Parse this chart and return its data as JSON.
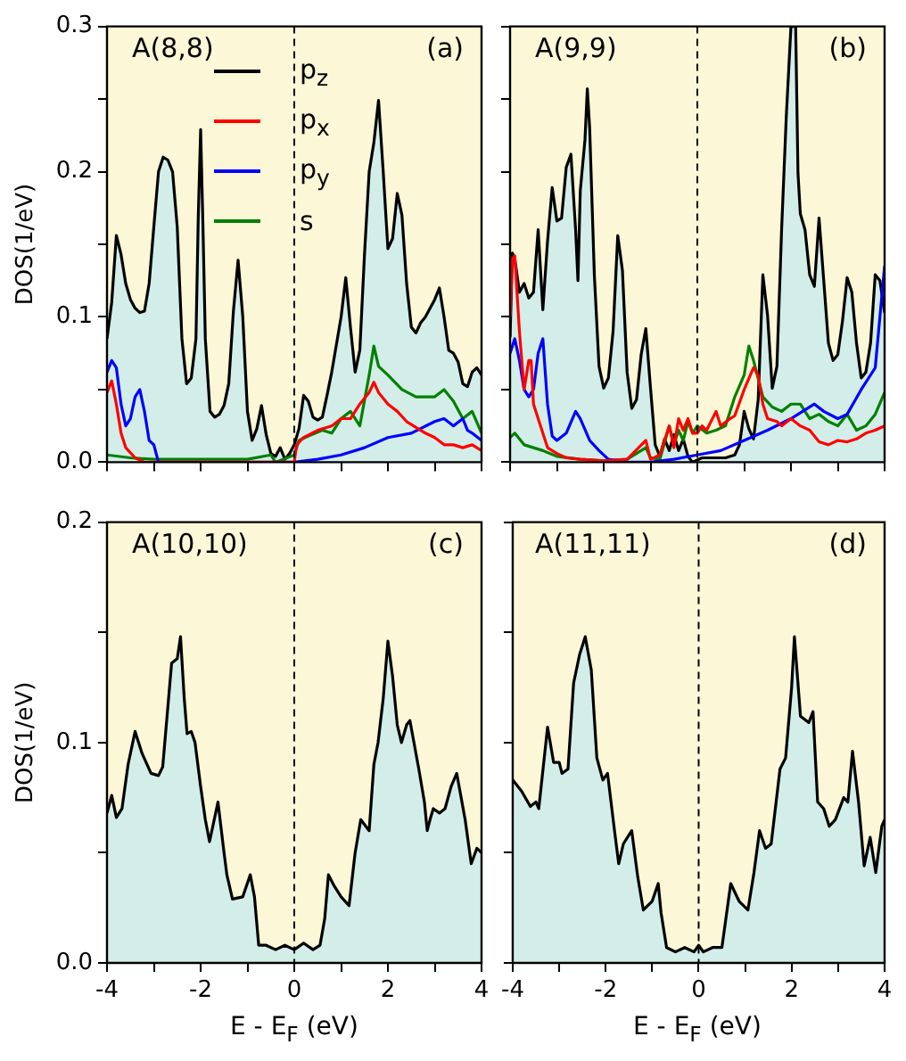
{
  "chart_data": [
    {
      "type": "line",
      "ylabel": "DOS(1/eV)",
      "xlim": [
        -4,
        4
      ],
      "xticks": [
        -4,
        {
          "value": -3,
          "label": null
        },
        -2,
        {
          "value": -1,
          "label": null
        },
        0,
        {
          "value": 1,
          "label": null
        },
        2,
        {
          "value": 3,
          "label": null
        },
        4
      ],
      "ylim": [
        0,
        0.3
      ],
      "yticks": [
        {
          "value": 0,
          "label": "0.0"
        },
        {
          "value": 0.05,
          "label": null
        },
        {
          "value": 0.1,
          "label": "0.1"
        },
        {
          "value": 0.15,
          "label": null
        },
        {
          "value": 0.2,
          "label": "0.2"
        },
        {
          "value": 0.25,
          "label": null
        },
        {
          "value": 0.3,
          "label": "0.3"
        }
      ],
      "tick_labels": "y",
      "legend": "top",
      "annotations": [
        "A(8,8)",
        "(a)"
      ],
      "ref_lines": [
        {
          "axis": "x",
          "value": 0,
          "line_style": "dashed"
        }
      ],
      "series": [
        {
          "name": "p$_{z}$",
          "type": "area",
          "color": "#000000",
          "x": [
            -4,
            -3.9,
            -3.8,
            -3.7,
            -3.6,
            -3.5,
            -3.4,
            -3.3,
            -3.2,
            -3.1,
            -3.0,
            -2.9,
            -2.8,
            -2.7,
            -2.6,
            -2.5,
            -2.4,
            -2.3,
            -2.2,
            -2.1,
            -2.05,
            -2.0,
            -1.95,
            -1.9,
            -1.8,
            -1.7,
            -1.6,
            -1.5,
            -1.4,
            -1.3,
            -1.2,
            -1.1,
            -1.0,
            -0.9,
            -0.8,
            -0.7,
            -0.6,
            -0.5,
            -0.4,
            -0.3,
            -0.2,
            -0.1,
            0,
            0.1,
            0.2,
            0.3,
            0.4,
            0.5,
            0.6,
            0.7,
            0.8,
            0.9,
            1.0,
            1.1,
            1.2,
            1.3,
            1.4,
            1.5,
            1.6,
            1.7,
            1.8,
            1.9,
            2.0,
            2.1,
            2.2,
            2.3,
            2.4,
            2.5,
            2.6,
            2.7,
            2.8,
            2.9,
            3.0,
            3.1,
            3.2,
            3.3,
            3.4,
            3.5,
            3.6,
            3.7,
            3.8,
            3.9,
            4.0
          ],
          "values": [
            0.085,
            0.11,
            0.156,
            0.143,
            0.123,
            0.112,
            0.106,
            0.103,
            0.104,
            0.123,
            0.162,
            0.2,
            0.21,
            0.208,
            0.2,
            0.162,
            0.085,
            0.054,
            0.058,
            0.085,
            0.17,
            0.229,
            0.162,
            0.085,
            0.035,
            0.031,
            0.033,
            0.039,
            0.054,
            0.104,
            0.139,
            0.1,
            0.035,
            0.015,
            0.023,
            0.039,
            0.019,
            0.006,
            0.004,
            0.01,
            0.002,
            0.006,
            0.012,
            0.023,
            0.046,
            0.042,
            0.031,
            0.029,
            0.031,
            0.046,
            0.062,
            0.081,
            0.1,
            0.127,
            0.093,
            0.062,
            0.077,
            0.143,
            0.2,
            0.22,
            0.249,
            0.2,
            0.147,
            0.154,
            0.185,
            0.17,
            0.123,
            0.093,
            0.089,
            0.096,
            0.1,
            0.106,
            0.112,
            0.12,
            0.1,
            0.077,
            0.075,
            0.069,
            0.054,
            0.052,
            0.062,
            0.065,
            0.06
          ]
        },
        {
          "name": "p$_{x}$",
          "type": "line",
          "color": "#ff0000",
          "x": [
            -4,
            -3.9,
            -3.8,
            -3.7,
            -3.6,
            -3.4,
            -3.2,
            0,
            0.05,
            0.2,
            0.5,
            0.8,
            1.0,
            1.2,
            1.4,
            1.6,
            1.7,
            1.8,
            2.0,
            2.2,
            2.4,
            2.6,
            2.8,
            3.0,
            3.2,
            3.4,
            3.6,
            3.8,
            4.0
          ],
          "values": [
            0.048,
            0.056,
            0.04,
            0.02,
            0.01,
            0.003,
            0,
            0,
            0.012,
            0.017,
            0.022,
            0.025,
            0.03,
            0.03,
            0.04,
            0.048,
            0.055,
            0.048,
            0.04,
            0.035,
            0.028,
            0.024,
            0.02,
            0.017,
            0.012,
            0.012,
            0.01,
            0.012,
            0.008
          ]
        },
        {
          "name": "p$_{y}$",
          "type": "line",
          "color": "#0000ff",
          "x": [
            -4,
            -3.9,
            -3.8,
            -3.7,
            -3.6,
            -3.5,
            -3.4,
            -3.3,
            -3.2,
            -3.1,
            -3.0,
            -2.9,
            0,
            0.5,
            1.0,
            1.5,
            2.0,
            2.5,
            3.0,
            3.2,
            3.4,
            3.6,
            3.7,
            3.8,
            4.0
          ],
          "values": [
            0.062,
            0.07,
            0.065,
            0.04,
            0.025,
            0.03,
            0.045,
            0.05,
            0.035,
            0.015,
            0.012,
            0,
            0,
            0.002,
            0.005,
            0.01,
            0.017,
            0.02,
            0.028,
            0.03,
            0.025,
            0.03,
            0.022,
            0.02,
            0.015
          ]
        },
        {
          "name": "s",
          "type": "line",
          "color": "#008000",
          "x": [
            -4,
            -3.5,
            -3,
            -1.0,
            -0.5,
            -0.4,
            0,
            0.1,
            0.3,
            0.6,
            0.8,
            1.0,
            1.2,
            1.4,
            1.6,
            1.7,
            1.8,
            2.0,
            2.3,
            2.6,
            3.0,
            3.2,
            3.4,
            3.6,
            3.8,
            4.0
          ],
          "values": [
            0.005,
            0.003,
            0.002,
            0.002,
            0.005,
            0,
            0.005,
            0.015,
            0.018,
            0.022,
            0.02,
            0.03,
            0.035,
            0.025,
            0.06,
            0.08,
            0.066,
            0.06,
            0.05,
            0.045,
            0.045,
            0.05,
            0.042,
            0.03,
            0.035,
            0.02
          ]
        }
      ]
    },
    {
      "type": "line",
      "xlim": [
        -4,
        4
      ],
      "xticks": [
        -4,
        -3,
        -2,
        -1,
        0,
        1,
        2,
        3,
        4
      ],
      "ylim": [
        0,
        0.3
      ],
      "yticks": [
        0,
        0.05,
        0.1,
        0.15,
        0.2,
        0.25,
        0.3
      ],
      "tick_labels": false,
      "annotations": [
        "A(9,9)",
        "(b)"
      ],
      "ref_lines": [
        {
          "axis": "x",
          "value": 0,
          "line_style": "dashed"
        }
      ],
      "series": [
        {
          "type": "area",
          "color": "#000000",
          "x": [
            -4,
            -3.95,
            -3.9,
            -3.8,
            -3.7,
            -3.6,
            -3.5,
            -3.4,
            -3.3,
            -3.2,
            -3.1,
            -3.0,
            -2.9,
            -2.8,
            -2.7,
            -2.6,
            -2.55,
            -2.5,
            -2.4,
            -2.35,
            -2.3,
            -2.2,
            -2.1,
            -2.0,
            -1.9,
            -1.8,
            -1.7,
            -1.6,
            -1.5,
            -1.4,
            -1.3,
            -1.2,
            -1.1,
            -1.0,
            -0.9,
            -0.8,
            -0.7,
            -0.6,
            -0.5,
            -0.4,
            -0.3,
            -0.2,
            -0.1,
            0.1,
            0.6,
            0.8,
            0.9,
            1.0,
            1.1,
            1.2,
            1.3,
            1.4,
            1.5,
            1.6,
            1.7,
            1.8,
            1.9,
            2.0,
            2.1,
            2.15,
            2.2,
            2.3,
            2.4,
            2.5,
            2.6,
            2.7,
            2.8,
            2.9,
            3.0,
            3.1,
            3.2,
            3.3,
            3.4,
            3.5,
            3.6,
            3.7,
            3.8,
            3.9,
            4.0
          ],
          "values": [
            0.086,
            0.144,
            0.14,
            0.117,
            0.123,
            0.113,
            0.117,
            0.16,
            0.105,
            0.152,
            0.189,
            0.166,
            0.168,
            0.203,
            0.212,
            0.16,
            0.125,
            0.187,
            0.222,
            0.257,
            0.23,
            0.129,
            0.066,
            0.051,
            0.058,
            0.09,
            0.156,
            0.132,
            0.062,
            0.037,
            0.043,
            0.074,
            0.092,
            0.051,
            0.012,
            0.004,
            0.016,
            0.008,
            0.019,
            0.008,
            0.016,
            0.004,
            0,
            0.003,
            0.003,
            0.005,
            0.012,
            0.035,
            0.023,
            0.016,
            0.043,
            0.129,
            0.101,
            0.051,
            0.066,
            0.16,
            0.238,
            0.3,
            0.3,
            0.199,
            0.171,
            0.16,
            0.129,
            0.121,
            0.168,
            0.125,
            0.082,
            0.07,
            0.074,
            0.097,
            0.127,
            0.117,
            0.082,
            0.058,
            0.062,
            0.082,
            0.129,
            0.125,
            0.103
          ]
        },
        {
          "type": "line",
          "color": "#ff0000",
          "x": [
            -4,
            -3.95,
            -3.9,
            -3.8,
            -3.7,
            -3.6,
            -3.55,
            -3.5,
            -3.4,
            -3.3,
            -3.2,
            -3.0,
            -2.8,
            -2.5,
            -2.0,
            -1.5,
            -1.1,
            -1.0,
            -0.8,
            -0.6,
            -0.5,
            -0.4,
            -0.3,
            -0.2,
            -0.1,
            0.0,
            0.1,
            0.2,
            0.4,
            0.5,
            0.7,
            0.8,
            1.0,
            1.2,
            1.3,
            1.4,
            1.5,
            1.7,
            1.8,
            2.0,
            2.2,
            2.4,
            2.6,
            2.8,
            3.0,
            3.2,
            3.4,
            3.6,
            3.8,
            4.0
          ],
          "values": [
            0.1,
            0.14,
            0.142,
            0.09,
            0.05,
            0.07,
            0.07,
            0.04,
            0.03,
            0.02,
            0.01,
            0.006,
            0.003,
            0.002,
            0.001,
            0.002,
            0.015,
            0.002,
            0.005,
            0.025,
            0.01,
            0.03,
            0.022,
            0.03,
            0.02,
            0.02,
            0.025,
            0.022,
            0.035,
            0.025,
            0.03,
            0.032,
            0.05,
            0.065,
            0.06,
            0.04,
            0.03,
            0.028,
            0.025,
            0.03,
            0.025,
            0.022,
            0.014,
            0.012,
            0.015,
            0.014,
            0.016,
            0.02,
            0.022,
            0.025
          ]
        },
        {
          "type": "line",
          "color": "#0000ff",
          "x": [
            -4,
            -3.9,
            -3.8,
            -3.7,
            -3.6,
            -3.5,
            -3.4,
            -3.3,
            -3.2,
            -3.1,
            -3.0,
            -2.8,
            -2.6,
            -2.5,
            -2.3,
            -2.1,
            -1.9,
            -1.5,
            -1.0,
            -0.5,
            0.0,
            0.5,
            1.0,
            1.5,
            2.0,
            2.5,
            2.7,
            3.0,
            3.2,
            3.5,
            3.8,
            3.9,
            4.0
          ],
          "values": [
            0.075,
            0.085,
            0.07,
            0.05,
            0.045,
            0.05,
            0.075,
            0.085,
            0.04,
            0.018,
            0.015,
            0.02,
            0.035,
            0.03,
            0.015,
            0.008,
            0.002,
            0,
            0,
            0.002,
            0.005,
            0.008,
            0.015,
            0.022,
            0.03,
            0.04,
            0.035,
            0.03,
            0.033,
            0.05,
            0.065,
            0.1,
            0.135
          ]
        },
        {
          "type": "line",
          "color": "#008000",
          "x": [
            -4,
            -3.9,
            -3.7,
            -3.5,
            -3.3,
            -3.0,
            -2.5,
            -2.0,
            -1.5,
            -1.1,
            -1.0,
            -0.8,
            -0.6,
            -0.5,
            -0.4,
            -0.3,
            -0.2,
            -0.1,
            0.0,
            0.2,
            0.4,
            0.6,
            0.8,
            1.0,
            1.1,
            1.2,
            1.4,
            1.6,
            1.8,
            2.0,
            2.2,
            2.4,
            2.6,
            2.8,
            3.0,
            3.2,
            3.4,
            3.6,
            3.8,
            4.0
          ],
          "values": [
            0.017,
            0.02,
            0.012,
            0.01,
            0.008,
            0.004,
            0.002,
            0.001,
            0.002,
            0.01,
            0.003,
            0.002,
            0.025,
            0.012,
            0.022,
            0.015,
            0.028,
            0.02,
            0.025,
            0.02,
            0.022,
            0.025,
            0.045,
            0.06,
            0.08,
            0.07,
            0.045,
            0.038,
            0.035,
            0.04,
            0.04,
            0.03,
            0.033,
            0.028,
            0.025,
            0.033,
            0.022,
            0.025,
            0.033,
            0.048
          ]
        }
      ]
    },
    {
      "type": "line",
      "ylabel": "DOS(1/eV)",
      "xlabel": "E - E$_{F}$ (eV)",
      "xlim": [
        -4,
        4
      ],
      "xticks": [
        -4,
        {
          "value": -3,
          "label": null
        },
        -2,
        {
          "value": -1,
          "label": null
        },
        0,
        {
          "value": 1,
          "label": null
        },
        2,
        {
          "value": 3,
          "label": null
        },
        4
      ],
      "ylim": [
        0,
        0.2
      ],
      "yticks": [
        {
          "value": 0,
          "label": "0.0"
        },
        {
          "value": 0.05,
          "label": null
        },
        {
          "value": 0.1,
          "label": "0.1"
        },
        {
          "value": 0.15,
          "label": null
        },
        {
          "value": 0.2,
          "label": "0.2"
        }
      ],
      "annotations": [
        "A(10,10)",
        "(c)"
      ],
      "ref_lines": [
        {
          "axis": "x",
          "value": 0,
          "line_style": "dashed"
        }
      ],
      "series": [
        {
          "type": "area",
          "color": "#000000",
          "x": [
            -4,
            -3.9,
            -3.8,
            -3.68,
            -3.55,
            -3.4,
            -3.25,
            -3.06,
            -2.9,
            -2.81,
            -2.62,
            -2.5,
            -2.43,
            -2.35,
            -2.29,
            -2.2,
            -2.12,
            -2.0,
            -1.9,
            -1.81,
            -1.63,
            -1.5,
            -1.44,
            -1.32,
            -1.1,
            -0.94,
            -0.85,
            -0.76,
            -0.6,
            -0.4,
            -0.2,
            0,
            0.2,
            0.4,
            0.55,
            0.65,
            0.73,
            0.85,
            1.0,
            1.17,
            1.3,
            1.42,
            1.6,
            1.7,
            1.79,
            1.9,
            2.0,
            2.1,
            2.2,
            2.29,
            2.4,
            2.47,
            2.66,
            2.78,
            2.84,
            2.9,
            2.97,
            3.1,
            3.22,
            3.35,
            3.47,
            3.65,
            3.78,
            3.9,
            4.0
          ],
          "values": [
            0.068,
            0.076,
            0.066,
            0.07,
            0.09,
            0.105,
            0.095,
            0.086,
            0.085,
            0.089,
            0.136,
            0.138,
            0.148,
            0.12,
            0.104,
            0.105,
            0.1,
            0.08,
            0.065,
            0.055,
            0.073,
            0.05,
            0.04,
            0.029,
            0.03,
            0.04,
            0.03,
            0.008,
            0.008,
            0.006,
            0.008,
            0.006,
            0.009,
            0.006,
            0.008,
            0.02,
            0.04,
            0.035,
            0.03,
            0.026,
            0.05,
            0.065,
            0.06,
            0.09,
            0.1,
            0.12,
            0.146,
            0.13,
            0.108,
            0.1,
            0.108,
            0.11,
            0.088,
            0.073,
            0.06,
            0.065,
            0.07,
            0.068,
            0.07,
            0.08,
            0.086,
            0.065,
            0.045,
            0.052,
            0.05
          ]
        }
      ]
    },
    {
      "type": "line",
      "xlabel": "E - E$_{F}$ (eV)",
      "xlim": [
        -4,
        4
      ],
      "xticks": [
        -4,
        {
          "value": -3,
          "label": null
        },
        -2,
        {
          "value": -1,
          "label": null
        },
        0,
        {
          "value": 1,
          "label": null
        },
        2,
        {
          "value": 3,
          "label": null
        },
        4
      ],
      "ylim": [
        0,
        0.2
      ],
      "yticks": [
        0,
        0.05,
        0.1,
        0.15,
        0.2
      ],
      "tick_labels": "x",
      "annotations": [
        "A(11,11)",
        "(d)"
      ],
      "ref_lines": [
        {
          "axis": "x",
          "value": 0,
          "line_style": "dashed"
        }
      ],
      "series": [
        {
          "type": "area",
          "color": "#000000",
          "x": [
            -4,
            -3.81,
            -3.62,
            -3.5,
            -3.44,
            -3.25,
            -3.12,
            -3.0,
            -2.94,
            -2.81,
            -2.69,
            -2.56,
            -2.44,
            -2.31,
            -2.19,
            -2.06,
            -1.96,
            -1.81,
            -1.72,
            -1.62,
            -1.44,
            -1.31,
            -1.19,
            -1.0,
            -0.87,
            -0.81,
            -0.69,
            -0.5,
            -0.3,
            -0.1,
            0,
            0.1,
            0.3,
            0.5,
            0.69,
            0.87,
            1.06,
            1.19,
            1.31,
            1.44,
            1.56,
            1.75,
            1.87,
            2.0,
            2.06,
            2.19,
            2.37,
            2.46,
            2.56,
            2.69,
            2.81,
            2.94,
            3.12,
            3.21,
            3.31,
            3.44,
            3.56,
            3.69,
            3.81,
            3.94,
            4.0
          ],
          "values": [
            0.083,
            0.078,
            0.071,
            0.073,
            0.07,
            0.107,
            0.091,
            0.091,
            0.086,
            0.088,
            0.127,
            0.14,
            0.148,
            0.133,
            0.093,
            0.083,
            0.086,
            0.06,
            0.045,
            0.054,
            0.06,
            0.039,
            0.024,
            0.028,
            0.036,
            0.023,
            0.007,
            0.005,
            0.007,
            0.005,
            0.008,
            0.005,
            0.007,
            0.007,
            0.036,
            0.028,
            0.024,
            0.041,
            0.06,
            0.052,
            0.054,
            0.088,
            0.093,
            0.125,
            0.148,
            0.112,
            0.109,
            0.114,
            0.073,
            0.07,
            0.062,
            0.065,
            0.075,
            0.073,
            0.096,
            0.073,
            0.044,
            0.057,
            0.041,
            0.062,
            0.065
          ]
        }
      ]
    }
  ]
}
